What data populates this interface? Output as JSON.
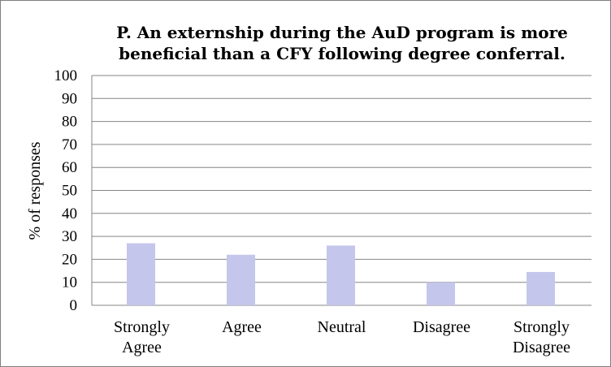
{
  "chart_data": {
    "type": "bar",
    "title": "P. An externship during the AuD program is more beneficial than a CFY following degree conferral.",
    "title_lines": [
      "P. An externship during the AuD program is more",
      "beneficial than a CFY following degree conferral."
    ],
    "xlabel": "",
    "ylabel": "% of responses",
    "ylim": [
      0,
      100
    ],
    "yticks": [
      0,
      10,
      20,
      30,
      40,
      50,
      60,
      70,
      80,
      90,
      100
    ],
    "categories": [
      [
        "Strongly",
        "Agree"
      ],
      [
        "Agree"
      ],
      [
        "Neutral"
      ],
      [
        "Disagree"
      ],
      [
        "Strongly",
        "Disagree"
      ]
    ],
    "values": [
      27,
      22,
      26,
      10,
      14.5
    ],
    "bar_color": "#c4c6ec",
    "grid": true,
    "gridline_color": "#868686",
    "legend": "none"
  }
}
